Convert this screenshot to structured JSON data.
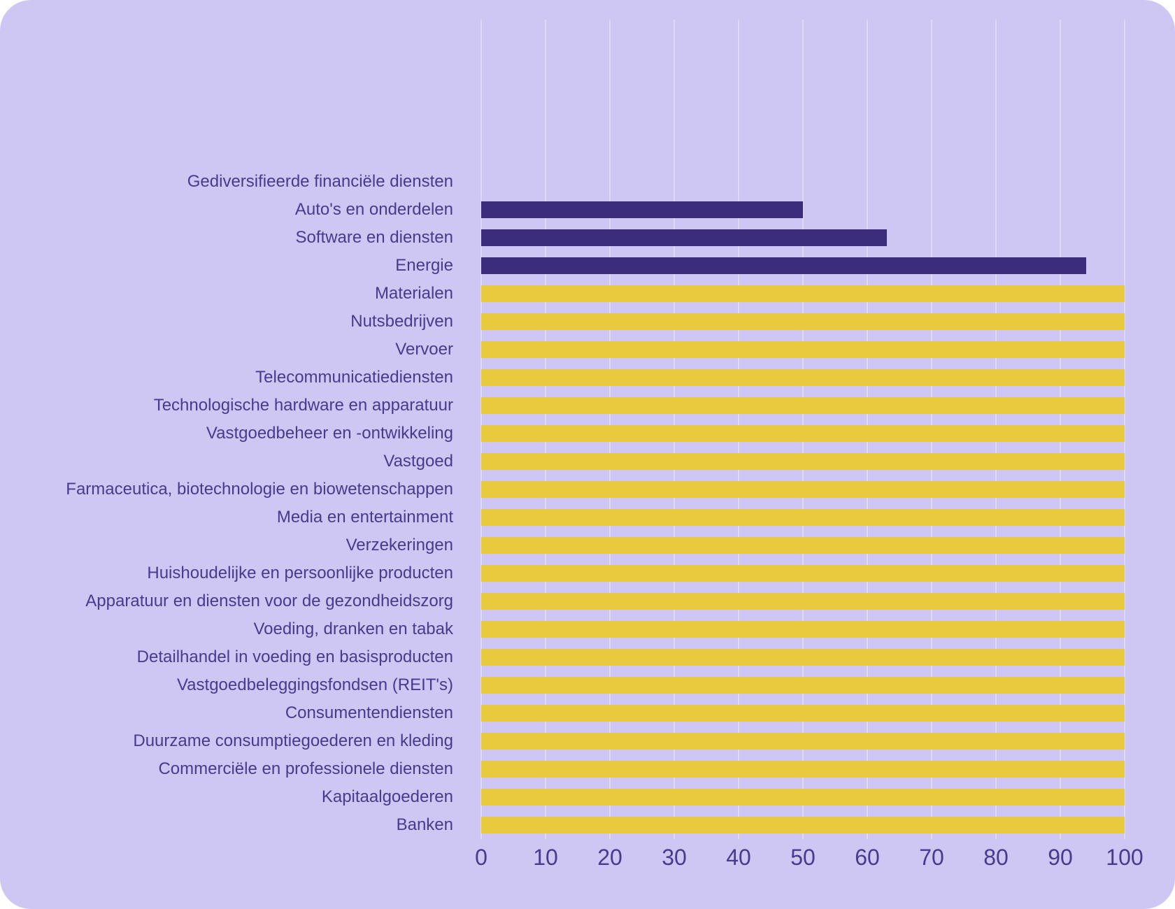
{
  "colors": {
    "page_background": "#ffffff",
    "card_background": "#cec7f4",
    "gridline": "#e0daf8",
    "bar_purple": "#3b2d7b",
    "bar_yellow": "#e9c93d",
    "text": "#483a8c"
  },
  "chart_data": {
    "type": "bar",
    "orientation": "horizontal",
    "title": "",
    "xlabel": "",
    "ylabel": "",
    "xlim": [
      0,
      100
    ],
    "x_ticks": [
      0,
      10,
      20,
      30,
      40,
      50,
      60,
      70,
      80,
      90,
      100
    ],
    "grid": "vertical",
    "legend_position": "none",
    "categories": [
      "Gediversifieerde financiële diensten",
      "Auto's en onderdelen",
      "Software en diensten",
      "Energie",
      "Materialen",
      "Nutsbedrijven",
      "Vervoer",
      "Telecommunicatiediensten",
      "Technologische hardware en apparatuur",
      "Vastgoedbeheer en -ontwikkeling",
      "Vastgoed",
      "Farmaceutica, biotechnologie en biowetenschappen",
      "Media en entertainment",
      "Verzekeringen",
      "Huishoudelijke en persoonlijke producten",
      "Apparatuur en diensten voor de gezondheidszorg",
      "Voeding, dranken en tabak",
      "Detailhandel in voeding en basisproducten",
      "Vastgoedbeleggingsfondsen (REIT's)",
      "Consumentendiensten",
      "Duurzame consumptiegoederen en kleding",
      "Commerciële en professionele diensten",
      "Kapitaalgoederen",
      "Banken"
    ],
    "values": [
      0,
      50,
      63,
      94,
      100,
      100,
      100,
      100,
      100,
      100,
      100,
      100,
      100,
      100,
      100,
      100,
      100,
      100,
      100,
      100,
      100,
      100,
      100,
      100
    ],
    "bar_colors": [
      null,
      "#3b2d7b",
      "#3b2d7b",
      "#3b2d7b",
      "#e9c93d",
      "#e9c93d",
      "#e9c93d",
      "#e9c93d",
      "#e9c93d",
      "#e9c93d",
      "#e9c93d",
      "#e9c93d",
      "#e9c93d",
      "#e9c93d",
      "#e9c93d",
      "#e9c93d",
      "#e9c93d",
      "#e9c93d",
      "#e9c93d",
      "#e9c93d",
      "#e9c93d",
      "#e9c93d",
      "#e9c93d",
      "#e9c93d"
    ]
  }
}
